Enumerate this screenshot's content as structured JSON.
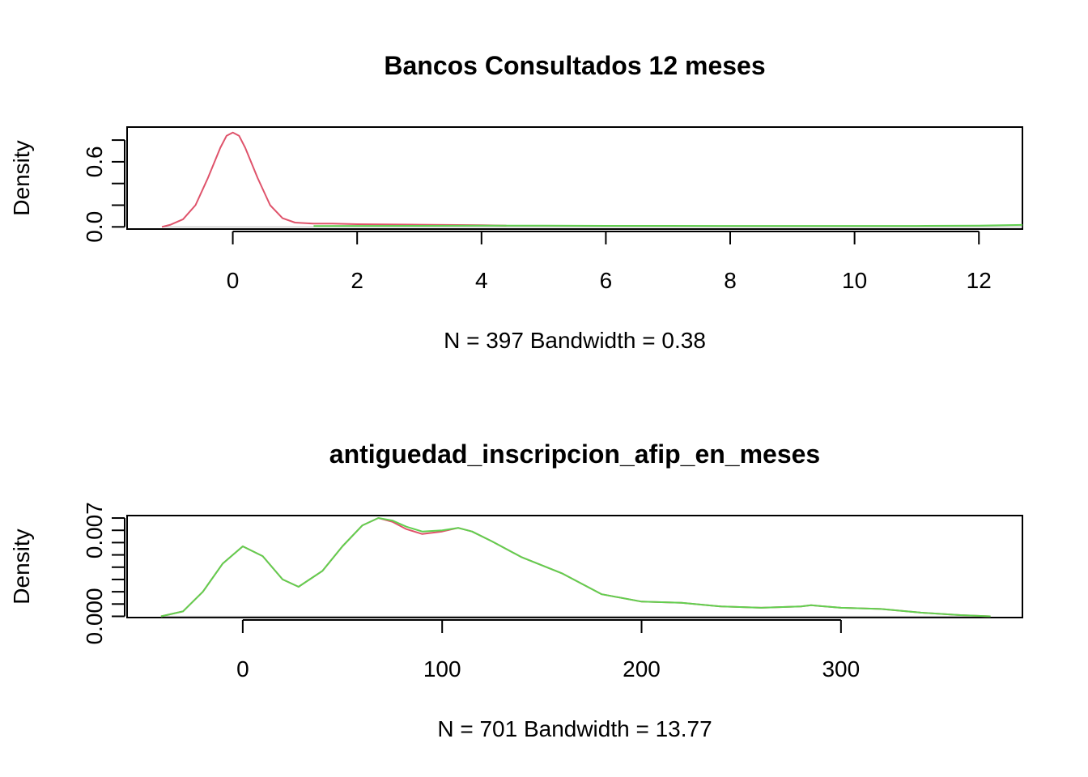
{
  "chart_data": [
    {
      "type": "line",
      "title": "Bancos Consultados 12 meses",
      "xlabel": "N = 397   Bandwidth = 0.38",
      "ylabel": "Density",
      "x_ticks": [
        "0",
        "2",
        "4",
        "6",
        "8",
        "10",
        "12"
      ],
      "x_tick_values": [
        0,
        2,
        4,
        6,
        8,
        10,
        12
      ],
      "y_ticks": [
        "0.0",
        "0.6"
      ],
      "y_tick_values": [
        0.0,
        0.6
      ],
      "y_minor_ticks": [
        0.0,
        0.2,
        0.4,
        0.6,
        0.8
      ],
      "xlim": [
        -1.7,
        12.7
      ],
      "ylim": [
        -0.02,
        0.92
      ],
      "series": [
        {
          "color": "#DF536B",
          "x": [
            -1.14,
            -1.0,
            -0.8,
            -0.6,
            -0.4,
            -0.2,
            -0.1,
            0.0,
            0.1,
            0.2,
            0.4,
            0.6,
            0.8,
            1.0,
            1.3,
            1.6,
            2.0,
            3.0,
            4.0,
            4.4
          ],
          "y": [
            0.0,
            0.02,
            0.07,
            0.2,
            0.45,
            0.73,
            0.84,
            0.87,
            0.84,
            0.73,
            0.45,
            0.2,
            0.08,
            0.04,
            0.03,
            0.03,
            0.025,
            0.02,
            0.015,
            0.012
          ]
        },
        {
          "color": "#61D04F",
          "x": [
            1.3,
            2,
            3,
            4,
            5,
            6,
            7,
            8,
            9,
            10,
            11,
            12,
            12.7
          ],
          "y": [
            0.008,
            0.009,
            0.01,
            0.011,
            0.011,
            0.01,
            0.01,
            0.009,
            0.009,
            0.009,
            0.009,
            0.012,
            0.018
          ]
        }
      ]
    },
    {
      "type": "line",
      "title": "antiguedad_inscripcion_afip_en_meses",
      "xlabel": "N = 701   Bandwidth = 13.77",
      "ylabel": "Density",
      "x_ticks": [
        "0",
        "100",
        "200",
        "300"
      ],
      "x_tick_values": [
        0,
        100,
        200,
        300
      ],
      "y_ticks": [
        "0.000",
        "0.007"
      ],
      "y_tick_values": [
        0.0,
        0.007
      ],
      "y_minor_ticks": [
        0.0,
        0.001,
        0.002,
        0.003,
        0.004,
        0.005,
        0.006,
        0.007,
        0.008
      ],
      "xlim": [
        -58,
        391
      ],
      "ylim": [
        -0.0001,
        0.0082
      ],
      "series": [
        {
          "color": "#DF536B",
          "x": [
            -41,
            -30,
            -20,
            -10,
            0,
            10,
            20,
            28,
            40,
            50,
            60,
            68,
            75,
            82,
            90,
            100,
            108,
            115,
            125,
            140,
            160,
            180,
            200,
            220,
            240,
            260,
            280,
            285,
            300,
            320,
            340,
            360,
            375
          ],
          "y": [
            0.0,
            0.0004,
            0.002,
            0.0043,
            0.0057,
            0.0049,
            0.003,
            0.0024,
            0.0037,
            0.0057,
            0.0074,
            0.008,
            0.0077,
            0.0071,
            0.0067,
            0.0069,
            0.0072,
            0.0069,
            0.0061,
            0.0048,
            0.0035,
            0.0018,
            0.0012,
            0.0011,
            0.0008,
            0.0007,
            0.0008,
            0.0009,
            0.0007,
            0.0006,
            0.0003,
            0.0001,
            0.0
          ]
        },
        {
          "color": "#61D04F",
          "x": [
            -41,
            -30,
            -20,
            -10,
            0,
            10,
            20,
            28,
            40,
            50,
            60,
            68,
            75,
            82,
            90,
            100,
            108,
            115,
            125,
            140,
            160,
            180,
            200,
            220,
            240,
            260,
            280,
            285,
            300,
            320,
            340,
            360,
            375
          ],
          "y": [
            0.0,
            0.0004,
            0.002,
            0.0043,
            0.0057,
            0.0049,
            0.003,
            0.0024,
            0.0037,
            0.0057,
            0.0074,
            0.008,
            0.0078,
            0.0073,
            0.0069,
            0.007,
            0.0072,
            0.0069,
            0.0061,
            0.0048,
            0.0035,
            0.0018,
            0.0012,
            0.0011,
            0.0008,
            0.0007,
            0.0008,
            0.0009,
            0.0007,
            0.0006,
            0.0003,
            0.0001,
            0.0
          ]
        }
      ]
    }
  ]
}
